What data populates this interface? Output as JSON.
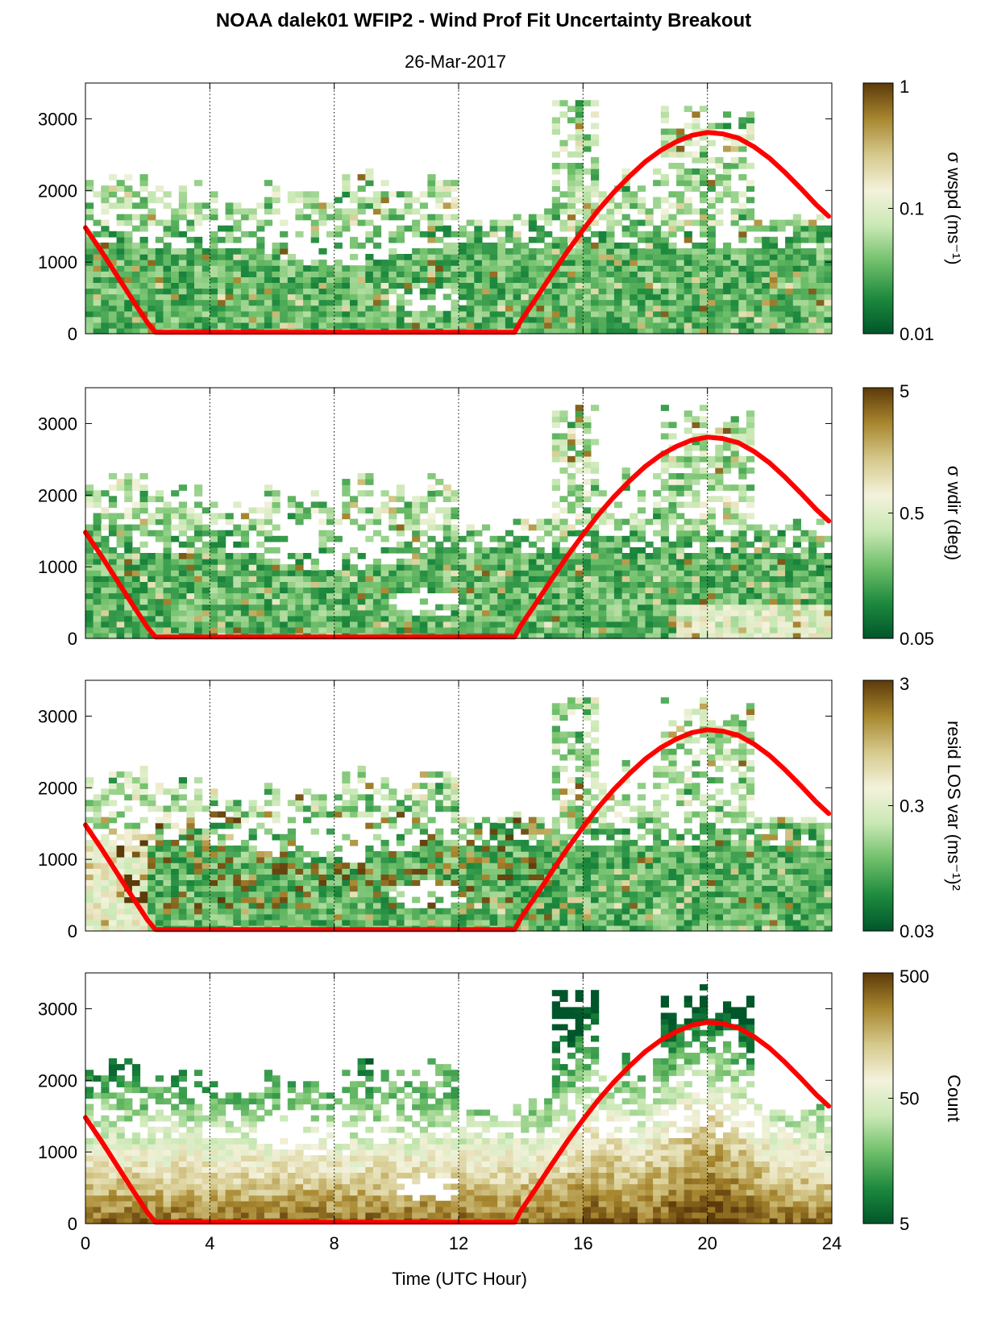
{
  "title": "NOAA dalek01 WFIP2 - Wind Prof Fit Uncertainty Breakout",
  "subtitle": "26-Mar-2017",
  "xlabel": "Time (UTC Hour)",
  "chart_data": {
    "type": "heatmap",
    "x_range": [
      0,
      24
    ],
    "x_ticks": [
      "0",
      "4",
      "8",
      "12",
      "16",
      "20",
      "24"
    ],
    "y_range": [
      0,
      3500
    ],
    "y_ticks": [
      "0",
      "1000",
      "2000",
      "3000"
    ],
    "grid": "vertical dotted lines at 4, 8, 12, 16, 20",
    "colormap": [
      "#00562a",
      "#1e8a3e",
      "#6fbf6a",
      "#c9e8b4",
      "#f4f2dc",
      "#d5c98c",
      "#a8872f",
      "#5c3a0a"
    ],
    "red_curve_color": "#ff0000",
    "red_curve": {
      "x": [
        0,
        0.5,
        1,
        1.5,
        2,
        2.25,
        3,
        6,
        9,
        12,
        13.8,
        14,
        14.5,
        15,
        15.5,
        16,
        16.5,
        17,
        17.5,
        18,
        18.5,
        19,
        19.5,
        20,
        20.5,
        21,
        21.5,
        22,
        22.5,
        23,
        23.5,
        23.9
      ],
      "y": [
        1480,
        1160,
        820,
        480,
        150,
        20,
        20,
        20,
        20,
        20,
        20,
        180,
        500,
        830,
        1150,
        1450,
        1730,
        1980,
        2200,
        2400,
        2560,
        2680,
        2770,
        2810,
        2790,
        2730,
        2610,
        2450,
        2250,
        2030,
        1800,
        1640
      ]
    },
    "panels": [
      {
        "colorbar_label": "σ wspd (ms⁻¹)",
        "colorbar_ticks": [
          "1",
          "0.1",
          "0.01"
        ],
        "scale": "log"
      },
      {
        "colorbar_label": "σ wdir (deg)",
        "colorbar_ticks": [
          "5",
          "0.5",
          "0.05"
        ],
        "scale": "log"
      },
      {
        "colorbar_label": "resid LOS var (ms⁻¹)²",
        "colorbar_ticks": [
          "3",
          "0.3",
          "0.03"
        ],
        "scale": "log"
      },
      {
        "colorbar_label": "Count",
        "colorbar_ticks": [
          "500",
          "50",
          "5"
        ],
        "scale": "log"
      }
    ]
  }
}
